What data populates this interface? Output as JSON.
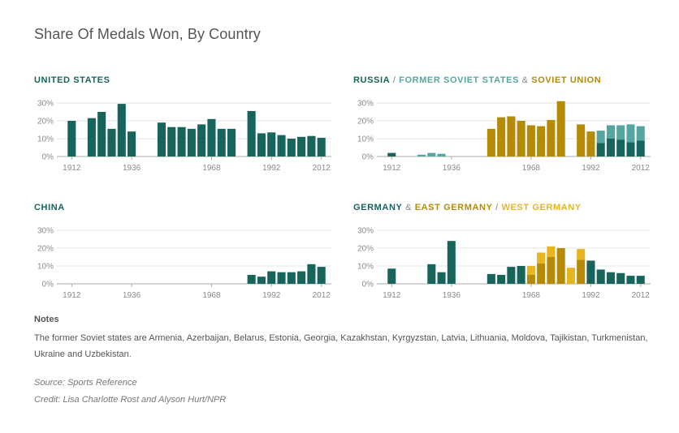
{
  "title": "Share Of Medals Won, By Country",
  "colors": {
    "teal": "#17645c",
    "light_teal": "#55a6a0",
    "gold": "#b58a07",
    "yellow": "#e7b520",
    "grid": "#e4e4e4",
    "axis": "#aaaaaa"
  },
  "panels": {
    "us": {
      "title": "UNITED STATES"
    },
    "russia": {
      "title_part1": "RUSSIA",
      "sep1": " / ",
      "title_part2": "FORMER SOVIET STATES",
      "sep2": " & ",
      "title_part3": "SOVIET UNION"
    },
    "china": {
      "title": "CHINA"
    },
    "germany": {
      "title_part1": "GERMANY",
      "sep1": " & ",
      "title_part2": "EAST GERMANY",
      "sep2": " / ",
      "title_part3": "WEST GERMANY"
    }
  },
  "notes": {
    "heading": "Notes",
    "text": "The former Soviet states are Armenia, Azerbaijan, Belarus, Estonia, Georgia, Kazakhstan, Kyrgyzstan, Latvia, Lithuania, Moldova, Tajikistan, Turkmenistan, Ukraine and Uzbekistan.",
    "source": "Source: Sports Reference",
    "credit": "Credit: Lisa Charlotte Rost and Alyson Hurt/NPR"
  },
  "chart_data": [
    {
      "id": "us",
      "type": "bar",
      "title": "UNITED STATES",
      "categories": [
        "1912",
        "1920",
        "1924",
        "1928",
        "1932",
        "1936",
        "1948",
        "1952",
        "1956",
        "1960",
        "1964",
        "1968",
        "1972",
        "1976",
        "1984",
        "1988",
        "1992",
        "1996",
        "2000",
        "2004",
        "2008",
        "2012"
      ],
      "series": [
        {
          "name": "United States",
          "color_key": "teal",
          "values": [
            20,
            21.5,
            25,
            15.5,
            29.5,
            14,
            19,
            16.5,
            16.5,
            15.5,
            18,
            21,
            15.5,
            15.5,
            25.5,
            13,
            13.5,
            12,
            10,
            11,
            11.5,
            10.5
          ]
        }
      ],
      "yticks": [
        "0%",
        "10%",
        "20%",
        "30%"
      ],
      "ylim": [
        0,
        30
      ],
      "xticks": [
        "1912",
        "1936",
        "1968",
        "1992",
        "2012"
      ]
    },
    {
      "id": "russia",
      "type": "bar",
      "title": "RUSSIA / FORMER SOVIET STATES & SOVIET UNION",
      "categories": [
        "1912",
        "1920",
        "1924",
        "1928",
        "1932",
        "1936",
        "1948",
        "1952",
        "1956",
        "1960",
        "1964",
        "1968",
        "1972",
        "1976",
        "1980",
        "1988",
        "1992",
        "1996",
        "2000",
        "2004",
        "2008",
        "2012"
      ],
      "series": [
        {
          "name": "Russia",
          "color_key": "teal",
          "values": [
            2,
            0,
            0,
            0,
            0,
            0,
            0,
            0,
            0,
            0,
            0,
            0,
            0,
            0,
            0,
            0,
            0,
            7.5,
            10,
            9.5,
            8,
            9
          ]
        },
        {
          "name": "Former Soviet States",
          "color_key": "light_teal",
          "values": [
            0,
            0,
            1,
            2,
            1.5,
            0,
            0,
            0,
            0,
            0,
            0,
            0,
            0,
            0,
            0,
            0,
            0,
            7,
            7.5,
            8,
            10,
            8
          ]
        },
        {
          "name": "Soviet Union",
          "color_key": "gold",
          "values": [
            0,
            0,
            0,
            0,
            0,
            0,
            0,
            15.5,
            22,
            22.5,
            20,
            17.5,
            17,
            20.5,
            31,
            18,
            14,
            0,
            0,
            0,
            0,
            0
          ]
        }
      ],
      "yticks": [
        "0%",
        "10%",
        "20%",
        "30%"
      ],
      "ylim": [
        0,
        30
      ],
      "xticks": [
        "1912",
        "1936",
        "1968",
        "1992",
        "2012"
      ]
    },
    {
      "id": "china",
      "type": "bar",
      "title": "CHINA",
      "categories": [
        "1984",
        "1988",
        "1992",
        "1996",
        "2000",
        "2004",
        "2008",
        "2012"
      ],
      "series": [
        {
          "name": "China",
          "color_key": "teal",
          "values": [
            5,
            4,
            7,
            6.5,
            6.5,
            7,
            11,
            9.5
          ]
        }
      ],
      "yticks": [
        "0%",
        "10%",
        "20%",
        "30%"
      ],
      "ylim": [
        0,
        30
      ],
      "xticks": [
        "1912",
        "1936",
        "1968",
        "1992",
        "2012"
      ]
    },
    {
      "id": "germany",
      "type": "bar",
      "title": "GERMANY & EAST GERMANY / WEST GERMANY",
      "categories": [
        "1912",
        "1928",
        "1932",
        "1936",
        "1952",
        "1956",
        "1960",
        "1964",
        "1968",
        "1972",
        "1976",
        "1980",
        "1984",
        "1988",
        "1992",
        "1996",
        "2000",
        "2004",
        "2008",
        "2012"
      ],
      "series": [
        {
          "name": "Germany",
          "color_key": "teal",
          "values": [
            8.5,
            11,
            6.5,
            24,
            5.5,
            5,
            9.5,
            10,
            0,
            0,
            0,
            0,
            0,
            0,
            13,
            8,
            6.5,
            6,
            4.5,
            4.5
          ]
        },
        {
          "name": "East Germany",
          "color_key": "gold",
          "values": [
            0,
            0,
            0,
            0,
            0,
            0,
            0,
            0,
            5,
            11.5,
            15,
            20,
            0,
            13.5,
            0,
            0,
            0,
            0,
            0,
            0
          ]
        },
        {
          "name": "West Germany",
          "color_key": "yellow",
          "values": [
            0,
            0,
            0,
            0,
            0,
            0,
            0,
            0,
            5,
            6,
            6,
            0,
            9,
            6,
            0,
            0,
            0,
            0,
            0,
            0
          ]
        }
      ],
      "yticks": [
        "0%",
        "10%",
        "20%",
        "30%"
      ],
      "ylim": [
        0,
        30
      ],
      "xticks": [
        "1912",
        "1936",
        "1968",
        "1992",
        "2012"
      ]
    }
  ]
}
